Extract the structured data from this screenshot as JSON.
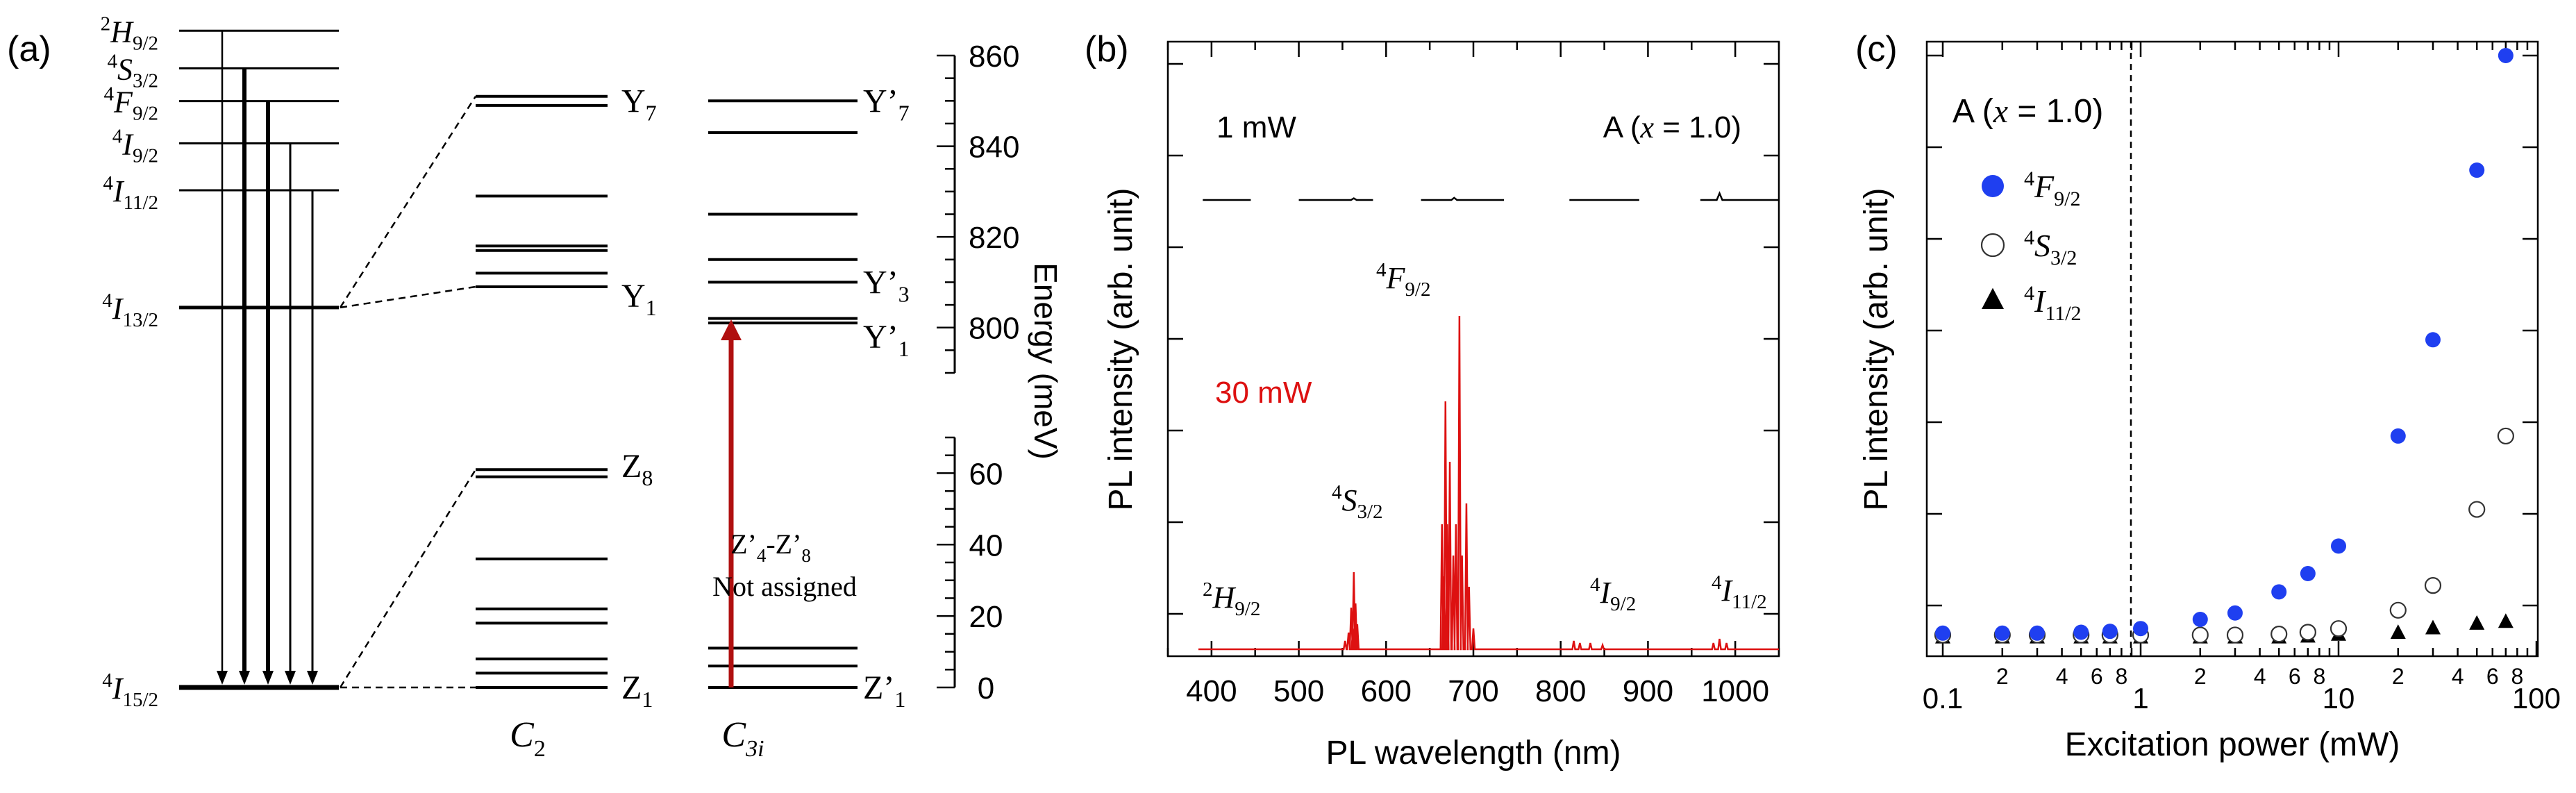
{
  "panel_a": {
    "label": "(a)",
    "levels": [
      {
        "term": "H",
        "sup": "2",
        "sub": "9/2",
        "energy_meV": 1400
      },
      {
        "term": "S",
        "sup": "4",
        "sub": "3/2",
        "energy_meV": 1320
      },
      {
        "term": "F",
        "sup": "4",
        "sub": "9/2",
        "energy_meV": 1250
      },
      {
        "term": "I",
        "sup": "4",
        "sub": "9/2",
        "energy_meV": 1160
      },
      {
        "term": "I",
        "sup": "4",
        "sub": "11/2",
        "energy_meV": 1060
      },
      {
        "term": "I",
        "sup": "4",
        "sub": "13/2",
        "energy_meV": 810
      },
      {
        "term": "I",
        "sup": "4",
        "sub": "15/2",
        "energy_meV": 0
      }
    ],
    "site_c2": {
      "label_main": "C",
      "label_sub": "2",
      "upper_levels_meV": [
        851,
        849,
        829,
        818,
        817,
        812,
        809
      ],
      "lower_levels_meV": [
        61,
        59,
        36,
        22,
        18,
        8,
        4,
        0
      ],
      "labels": [
        {
          "main": "Y",
          "sub": "7",
          "energy_meV": 850
        },
        {
          "main": "Y",
          "sub": "1",
          "energy_meV": 807
        },
        {
          "main": "Z",
          "sub": "8",
          "energy_meV": 62
        },
        {
          "main": "Z",
          "sub": "1",
          "energy_meV": 0
        }
      ]
    },
    "site_c3i": {
      "label_main": "C",
      "label_sub": "3i",
      "upper_levels_meV": [
        850,
        843,
        825,
        815,
        810,
        802,
        801
      ],
      "lower_levels_meV": [
        11,
        6,
        0
      ],
      "labels": [
        {
          "main": "Y’",
          "sub": "7",
          "energy_meV": 850
        },
        {
          "main": "Y’",
          "sub": "3",
          "energy_meV": 810
        },
        {
          "main": "Y’",
          "sub": "1",
          "energy_meV": 798
        },
        {
          "main": "Z’",
          "sub": "1",
          "energy_meV": 0
        }
      ],
      "annotation_line1_main": "Z’",
      "annotation_line1_sub1": "4",
      "annotation_line1_mid": "-Z’",
      "annotation_line1_sub2": "8",
      "annotation_line2": "Not assigned"
    },
    "energy_axis": {
      "label": "Energy (meV)",
      "upper_range": [
        790,
        860
      ],
      "upper_ticks": [
        "800",
        "820",
        "840",
        "860"
      ],
      "lower_range": [
        0,
        70
      ],
      "lower_ticks": [
        "0",
        "20",
        "40",
        "60"
      ]
    }
  },
  "chart_data": [
    {
      "panel": "(b)",
      "type": "line",
      "xlabel": "PL wavelength (nm)",
      "ylabel": "PL intensity (arb. unit)",
      "xlim": [
        350,
        1050
      ],
      "x_ticks": [
        "400",
        "500",
        "600",
        "700",
        "800",
        "900",
        "1000"
      ],
      "label_1mw": "1 mW",
      "label_sample": "A (",
      "label_x": "x",
      "label_sample_end": " = 1.0)",
      "label_30mw": "30 mW",
      "color_30mw": "#dd1111",
      "series": [
        {
          "name": "1 mW",
          "segments": [
            [
              390,
              445
            ],
            [
              500,
              585
            ],
            [
              640,
              735
            ],
            [
              810,
              890
            ],
            [
              960,
              1050
            ]
          ],
          "peaks": [
            {
              "x": 563,
              "h": 0.3
            },
            {
              "x": 678,
              "h": 0.4
            },
            {
              "x": 982,
              "h": 1.2
            }
          ]
        },
        {
          "name": "30 mW",
          "peaks": [
            {
              "x": 553,
              "h": 4
            },
            {
              "x": 557,
              "h": 8
            },
            {
              "x": 560,
              "h": 20
            },
            {
              "x": 562,
              "h": 10
            },
            {
              "x": 563,
              "h": 37
            },
            {
              "x": 565,
              "h": 22
            },
            {
              "x": 567,
              "h": 12
            },
            {
              "x": 664,
              "h": 60
            },
            {
              "x": 666,
              "h": 35
            },
            {
              "x": 668,
              "h": 119
            },
            {
              "x": 670,
              "h": 60
            },
            {
              "x": 673,
              "h": 90
            },
            {
              "x": 677,
              "h": 45
            },
            {
              "x": 680,
              "h": 60
            },
            {
              "x": 684,
              "h": 160
            },
            {
              "x": 687,
              "h": 45
            },
            {
              "x": 692,
              "h": 70
            },
            {
              "x": 695,
              "h": 30
            },
            {
              "x": 700,
              "h": 10
            },
            {
              "x": 815,
              "h": 4
            },
            {
              "x": 822,
              "h": 3
            },
            {
              "x": 834,
              "h": 3
            },
            {
              "x": 848,
              "h": 2
            },
            {
              "x": 975,
              "h": 3
            },
            {
              "x": 982,
              "h": 5
            },
            {
              "x": 990,
              "h": 3
            }
          ]
        }
      ],
      "annotations": [
        {
          "term": "H",
          "sup": "2",
          "sub": "9/2"
        },
        {
          "term": "S",
          "sup": "4",
          "sub": "3/2"
        },
        {
          "term": "F",
          "sup": "4",
          "sub": "9/2"
        },
        {
          "term": "I",
          "sup": "4",
          "sub": "9/2"
        },
        {
          "term": "I",
          "sup": "4",
          "sub": "11/2"
        }
      ]
    },
    {
      "panel": "(c)",
      "type": "scatter",
      "xscale": "log",
      "xlabel": "Excitation power (mW)",
      "ylabel": "PL intensity (arb. unit)",
      "xlim": [
        0.1,
        100
      ],
      "ylim": [
        0,
        6.5
      ],
      "major_ticks": [
        "0.1",
        "1",
        "10",
        "100"
      ],
      "minor_tick_labels": [
        "2",
        "4",
        "6",
        "8",
        "2",
        "4",
        "6",
        "8",
        "2",
        "4",
        "6",
        "8"
      ],
      "vertical_dashed_line_x": 1,
      "label_sample": "A (",
      "label_x": "x",
      "label_sample_end": " = 1.0)",
      "legend_position": "top-left",
      "series": [
        {
          "name": "4F9/2",
          "term": "F",
          "sup": "4",
          "sub": "9/2",
          "marker": "filled-circle",
          "color": "#1f3ff0",
          "x": [
            0.1,
            0.2,
            0.3,
            0.5,
            0.7,
            1,
            2,
            3,
            5,
            7,
            10,
            20,
            30,
            50,
            70
          ],
          "y": [
            0.1,
            0.1,
            0.1,
            0.11,
            0.12,
            0.15,
            0.25,
            0.32,
            0.55,
            0.75,
            1.05,
            2.25,
            3.3,
            5.15,
            6.4
          ]
        },
        {
          "name": "4S3/2",
          "term": "S",
          "sup": "4",
          "sub": "3/2",
          "marker": "open-circle",
          "color": "#333333",
          "x": [
            0.1,
            0.2,
            0.3,
            0.5,
            0.7,
            1,
            2,
            3,
            5,
            7,
            10,
            20,
            30,
            50,
            70
          ],
          "y": [
            0.08,
            0.08,
            0.08,
            0.08,
            0.08,
            0.08,
            0.08,
            0.08,
            0.09,
            0.11,
            0.15,
            0.35,
            0.62,
            1.45,
            2.25
          ]
        },
        {
          "name": "4I11/2",
          "term": "I",
          "sup": "4",
          "sub": "11/2",
          "marker": "filled-triangle",
          "color": "#000000",
          "x": [
            0.1,
            0.2,
            0.3,
            0.5,
            0.7,
            1,
            2,
            3,
            5,
            7,
            10,
            20,
            30,
            50,
            70
          ],
          "y": [
            0.05,
            0.05,
            0.05,
            0.05,
            0.05,
            0.05,
            0.05,
            0.05,
            0.05,
            0.06,
            0.08,
            0.1,
            0.15,
            0.2,
            0.22
          ]
        }
      ]
    }
  ],
  "colors": {
    "absorption_arrow": "#b01010",
    "text": "#000000"
  }
}
